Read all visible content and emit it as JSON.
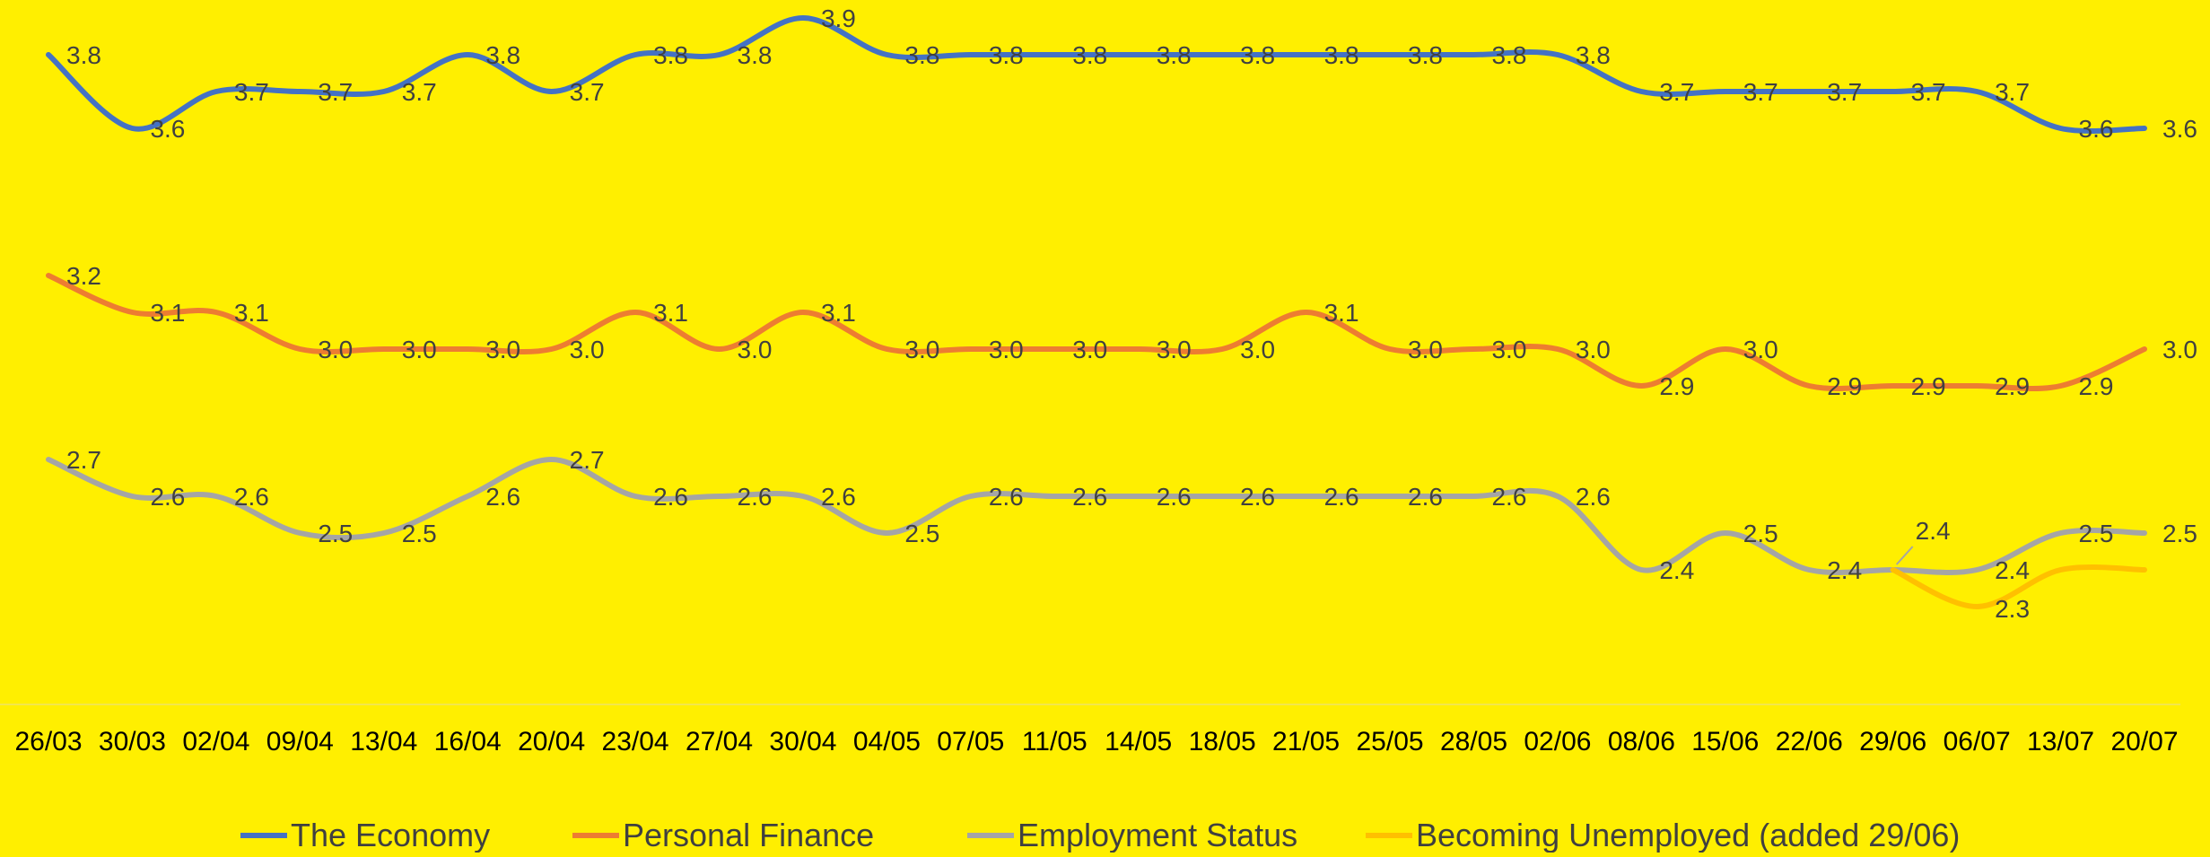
{
  "chart_data": {
    "type": "line",
    "title": "",
    "xlabel": "",
    "ylabel": "",
    "ylim": [
      1.8,
      4.0
    ],
    "grid": false,
    "legend_position": "bottom",
    "categories": [
      "26/03",
      "30/03",
      "02/04",
      "09/04",
      "13/04",
      "16/04",
      "20/04",
      "23/04",
      "27/04",
      "30/04",
      "04/05",
      "07/05",
      "11/05",
      "14/05",
      "18/05",
      "21/05",
      "25/05",
      "28/05",
      "02/06",
      "08/06",
      "15/06",
      "22/06",
      "29/06",
      "06/07",
      "13/07",
      "20/07"
    ],
    "series": [
      {
        "name": "The Economy",
        "color": "#4472C4",
        "values": [
          3.8,
          3.6,
          3.7,
          3.7,
          3.7,
          3.8,
          3.7,
          3.8,
          3.8,
          3.9,
          3.8,
          3.8,
          3.8,
          3.8,
          3.8,
          3.8,
          3.8,
          3.8,
          3.8,
          3.7,
          3.7,
          3.7,
          3.7,
          3.7,
          3.6,
          3.6
        ],
        "labels": [
          "3.8",
          "3.6",
          "3.7",
          "3.7",
          "3.7",
          "3.8",
          "3.7",
          "3.8",
          "3.8",
          "3.9",
          "3.8",
          "3.8",
          "3.8",
          "3.8",
          "3.8",
          "3.8",
          "3.8",
          "3.8",
          "3.8",
          "3.7",
          "3.7",
          "3.7",
          "3.7",
          "3.7",
          "3.6",
          "3.6"
        ]
      },
      {
        "name": "Personal Finance",
        "color": "#ED7D31",
        "values": [
          3.2,
          3.1,
          3.1,
          3.0,
          3.0,
          3.0,
          3.0,
          3.1,
          3.0,
          3.1,
          3.0,
          3.0,
          3.0,
          3.0,
          3.0,
          3.1,
          3.0,
          3.0,
          3.0,
          2.9,
          3.0,
          2.9,
          2.9,
          2.9,
          2.9,
          3.0
        ],
        "labels": [
          "3.2",
          "3.1",
          "3.1",
          "3.0",
          "3.0",
          "3.0",
          "3.0",
          "3.1",
          "3.0",
          "3.1",
          "3.0",
          "3.0",
          "3.0",
          "3.0",
          "3.0",
          "3.1",
          "3.0",
          "3.0",
          "3.0",
          "2.9",
          "3.0",
          "2.9",
          "2.9",
          "2.9",
          "2.9",
          "3.0"
        ]
      },
      {
        "name": "Employment Status",
        "color": "#A5A5A5",
        "values": [
          2.7,
          2.6,
          2.6,
          2.5,
          2.5,
          2.6,
          2.7,
          2.6,
          2.6,
          2.6,
          2.5,
          2.6,
          2.6,
          2.6,
          2.6,
          2.6,
          2.6,
          2.6,
          2.6,
          2.4,
          2.5,
          2.4,
          2.4,
          2.4,
          2.5,
          2.5
        ],
        "labels": [
          "2.7",
          "2.6",
          "2.6",
          "2.5",
          "2.5",
          "2.6",
          "2.7",
          "2.6",
          "2.6",
          "2.6",
          "2.5",
          "2.6",
          "2.6",
          "2.6",
          "2.6",
          "2.6",
          "2.6",
          "2.6",
          "2.6",
          "2.4",
          "2.5",
          "2.4",
          null,
          "2.4",
          "2.5",
          "2.5"
        ]
      },
      {
        "name": "Becoming Unemployed (added 29/06)",
        "color": "#FFC000",
        "values": [
          null,
          null,
          null,
          null,
          null,
          null,
          null,
          null,
          null,
          null,
          null,
          null,
          null,
          null,
          null,
          null,
          null,
          null,
          null,
          null,
          null,
          null,
          2.4,
          2.3,
          2.4,
          2.4
        ],
        "labels": [
          null,
          null,
          null,
          null,
          null,
          null,
          null,
          null,
          null,
          null,
          null,
          null,
          null,
          null,
          null,
          null,
          null,
          null,
          null,
          null,
          null,
          null,
          "2.4",
          "2.3",
          null,
          null
        ]
      }
    ]
  }
}
